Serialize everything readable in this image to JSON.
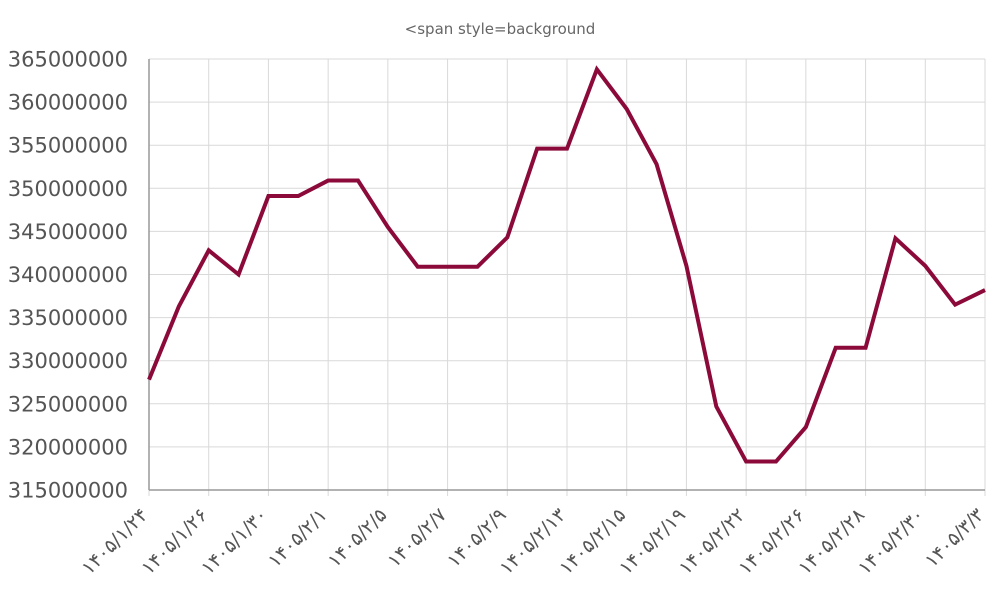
{
  "chart_data": {
    "type": "line",
    "title": "<span style=background",
    "xlabel": "",
    "ylabel": "",
    "ylim": [
      315000000,
      365000000
    ],
    "yticks": [
      315000000,
      320000000,
      325000000,
      330000000,
      335000000,
      340000000,
      345000000,
      350000000,
      355000000,
      360000000,
      365000000
    ],
    "ytick_labels": [
      "315000000",
      "320000000",
      "325000000",
      "330000000",
      "335000000",
      "340000000",
      "345000000",
      "350000000",
      "355000000",
      "360000000",
      "365000000"
    ],
    "xtick_labels": [
      "۱۴۰۵/۱/۲۴",
      "۱۴۰۵/۱/۲۶",
      "۱۴۰۵/۱/۳۰",
      "۱۴۰۵/۲/۱",
      "۱۴۰۵/۲/۵",
      "۱۴۰۵/۲/۷",
      "۱۴۰۵/۲/۹",
      "۱۴۰۵/۲/۱۳",
      "۱۴۰۵/۲/۱۵",
      "۱۴۰۵/۲/۱۹",
      "۱۴۰۵/۲/۲۲",
      "۱۴۰۵/۲/۲۶",
      "۱۴۰۵/۲/۲۸",
      "۱۴۰۵/۲/۳۰",
      "۱۴۰۵/۳/۳"
    ],
    "grid": true,
    "line_color": "#8b0a3a",
    "series": [
      {
        "values": [
          327800000,
          336300000,
          342800000,
          340000000,
          349100000,
          349100000,
          350900000,
          350900000,
          345500000,
          340900000,
          340900000,
          340900000,
          344300000,
          354600000,
          354600000,
          363800000,
          359200000,
          352800000,
          341000000,
          324700000,
          318300000,
          318300000,
          322300000,
          331500000,
          331500000,
          344200000,
          341000000,
          336500000,
          338200000
        ]
      }
    ]
  }
}
